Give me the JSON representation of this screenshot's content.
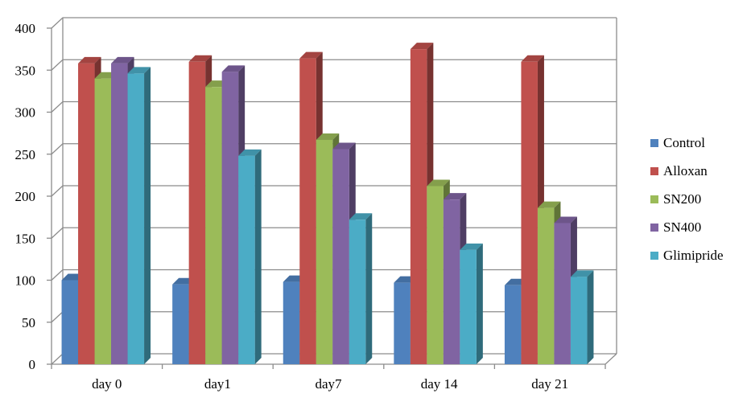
{
  "chart_data": {
    "type": "bar",
    "style": "3d-clustered-column",
    "categories": [
      "day 0",
      "day1",
      "day7",
      "day 14",
      "day 21"
    ],
    "series": [
      {
        "name": "Control",
        "color": "#4f81bd",
        "values": [
          100,
          95,
          98,
          97,
          94
        ]
      },
      {
        "name": "Alloxan",
        "color": "#c0504d",
        "values": [
          358,
          360,
          364,
          375,
          360
        ]
      },
      {
        "name": "SN200",
        "color": "#9bbb59",
        "values": [
          340,
          330,
          267,
          212,
          186
        ]
      },
      {
        "name": "SN400",
        "color": "#8064a2",
        "values": [
          358,
          348,
          256,
          196,
          168
        ]
      },
      {
        "name": "Glimipride",
        "color": "#4bacc6",
        "values": [
          346,
          248,
          172,
          136,
          104
        ]
      }
    ],
    "yticks": [
      "0",
      "50",
      "100",
      "150",
      "200",
      "250",
      "300",
      "350",
      "400"
    ],
    "ylim": [
      0,
      400
    ],
    "grid": true,
    "legend_position": "right"
  }
}
